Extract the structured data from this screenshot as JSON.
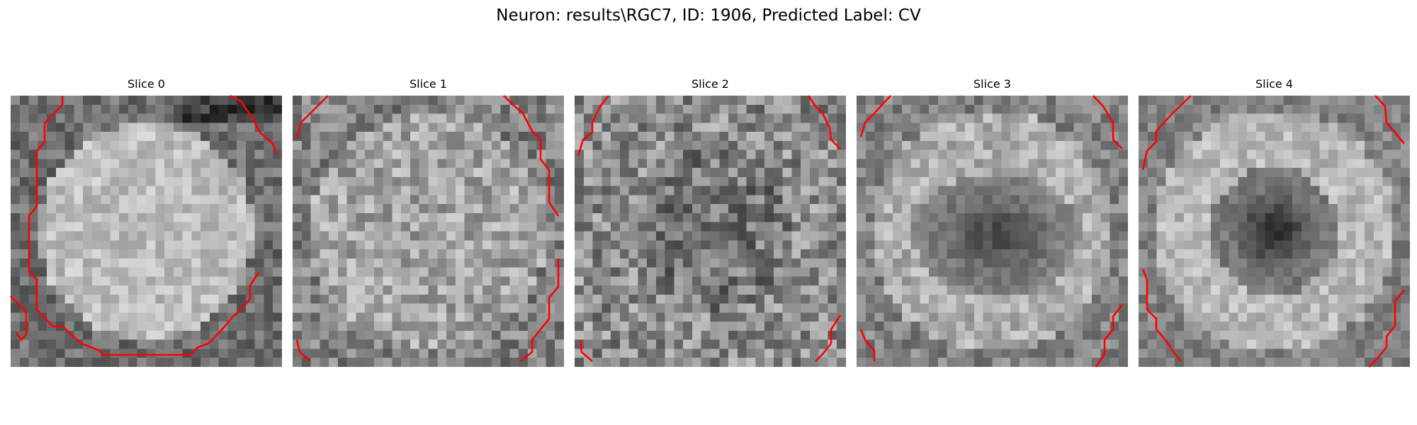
{
  "figure": {
    "title": "Neuron: results\\RGC7, ID: 1906, Predicted Label: CV"
  },
  "contour_color": "#ff0000",
  "colormap": "gray",
  "slices": [
    {
      "title": "Slice 0",
      "pattern": "bright-disk"
    },
    {
      "title": "Slice 1",
      "pattern": "noisy-gray"
    },
    {
      "title": "Slice 2",
      "pattern": "dark-noise"
    },
    {
      "title": "Slice 3",
      "pattern": "center-dark-blob"
    },
    {
      "title": "Slice 4",
      "pattern": "center-dark-ring"
    }
  ]
}
